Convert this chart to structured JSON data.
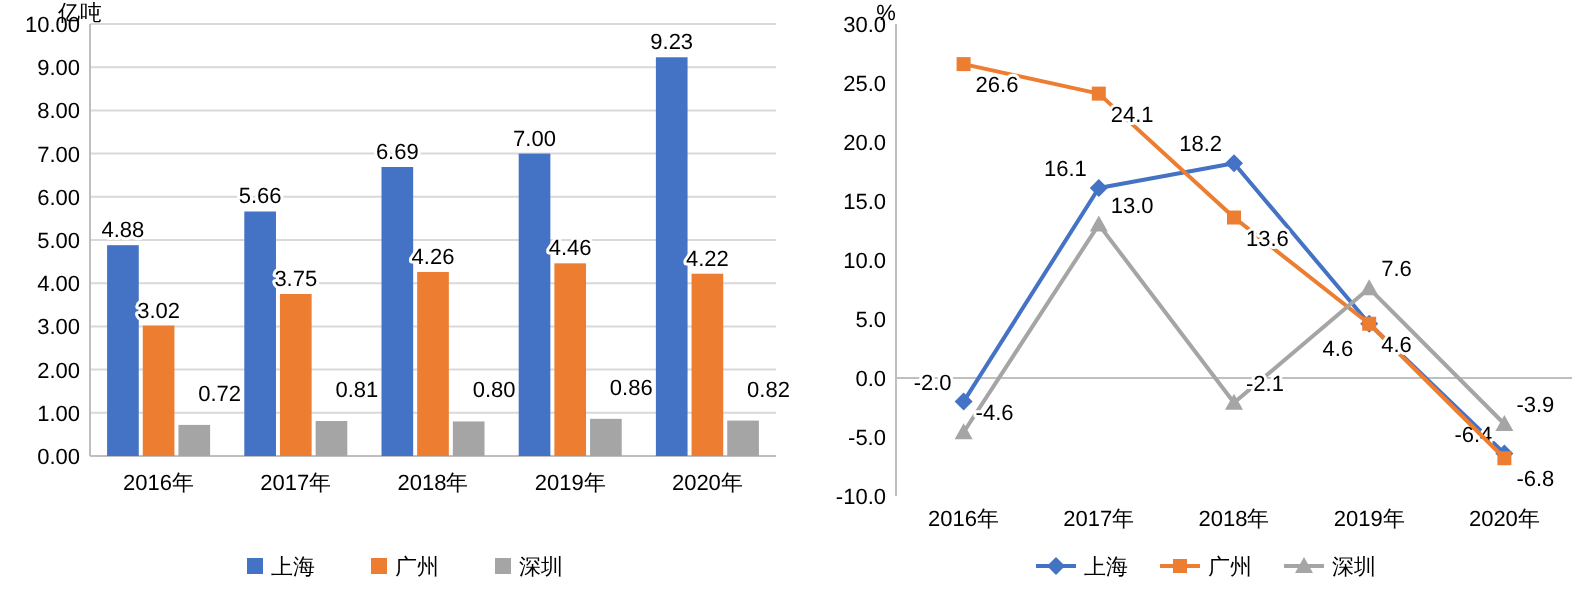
{
  "chart_data": [
    {
      "type": "bar",
      "ylabel": "亿吨",
      "categories": [
        "2016年",
        "2017年",
        "2018年",
        "2019年",
        "2020年"
      ],
      "ylim": [
        0,
        10
      ],
      "yticks": [
        {
          "value": 0,
          "label": "0.00"
        },
        {
          "value": 1,
          "label": "1.00"
        },
        {
          "value": 2,
          "label": "2.00"
        },
        {
          "value": 3,
          "label": "3.00"
        },
        {
          "value": 4,
          "label": "4.00"
        },
        {
          "value": 5,
          "label": "5.00"
        },
        {
          "value": 6,
          "label": "6.00"
        },
        {
          "value": 7,
          "label": "7.00"
        },
        {
          "value": 8,
          "label": "8.00"
        },
        {
          "value": 9,
          "label": "9.00"
        },
        {
          "value": 10,
          "label": "10.00"
        }
      ],
      "grid": "y",
      "legend": "bottom",
      "series": [
        {
          "name": "上海",
          "color": "#4472c4",
          "values": [
            4.88,
            5.66,
            6.69,
            7.0,
            9.23
          ],
          "value_labels": [
            "4.88",
            "5.66",
            "6.69",
            "7.00",
            "9.23"
          ]
        },
        {
          "name": "广州",
          "color": "#ed7d31",
          "values": [
            3.02,
            3.75,
            4.26,
            4.46,
            4.22
          ],
          "value_labels": [
            "3.02",
            "3.75",
            "4.26",
            "4.46",
            "4.22"
          ]
        },
        {
          "name": "深圳",
          "color": "#a5a5a5",
          "values": [
            0.72,
            0.81,
            0.8,
            0.86,
            0.82
          ],
          "value_labels": [
            "0.72",
            "0.81",
            "0.80",
            "0.86",
            "0.82"
          ]
        }
      ]
    },
    {
      "type": "line",
      "ylabel": "%",
      "categories": [
        "2016年",
        "2017年",
        "2018年",
        "2019年",
        "2020年"
      ],
      "ylim": [
        -10,
        30
      ],
      "yticks": [
        {
          "value": -10,
          "label": "-10.0"
        },
        {
          "value": -5,
          "label": "-5.0"
        },
        {
          "value": 0,
          "label": "0.0"
        },
        {
          "value": 5,
          "label": "5.0"
        },
        {
          "value": 10,
          "label": "10.0"
        },
        {
          "value": 15,
          "label": "15.0"
        },
        {
          "value": 20,
          "label": "20.0"
        },
        {
          "value": 25,
          "label": "25.0"
        },
        {
          "value": 30,
          "label": "30.0"
        }
      ],
      "legend": "bottom",
      "series": [
        {
          "name": "上海",
          "color": "#4472c4",
          "marker": "diamond",
          "values": [
            -2.0,
            16.1,
            18.2,
            4.6,
            -6.4
          ],
          "value_labels": [
            "-2.0",
            "16.1",
            "18.2",
            "4.6",
            "-6.4"
          ]
        },
        {
          "name": "广州",
          "color": "#ed7d31",
          "marker": "square",
          "values": [
            26.6,
            24.1,
            13.6,
            4.6,
            -6.8
          ],
          "value_labels": [
            "26.6",
            "24.1",
            "13.6",
            "4.6",
            "-6.8"
          ]
        },
        {
          "name": "深圳",
          "color": "#a5a5a5",
          "marker": "triangle",
          "values": [
            -4.6,
            13.0,
            -2.1,
            7.6,
            -3.9
          ],
          "value_labels": [
            "-4.6",
            "13.0",
            "-2.1",
            "7.6",
            "-3.9"
          ]
        }
      ]
    }
  ]
}
